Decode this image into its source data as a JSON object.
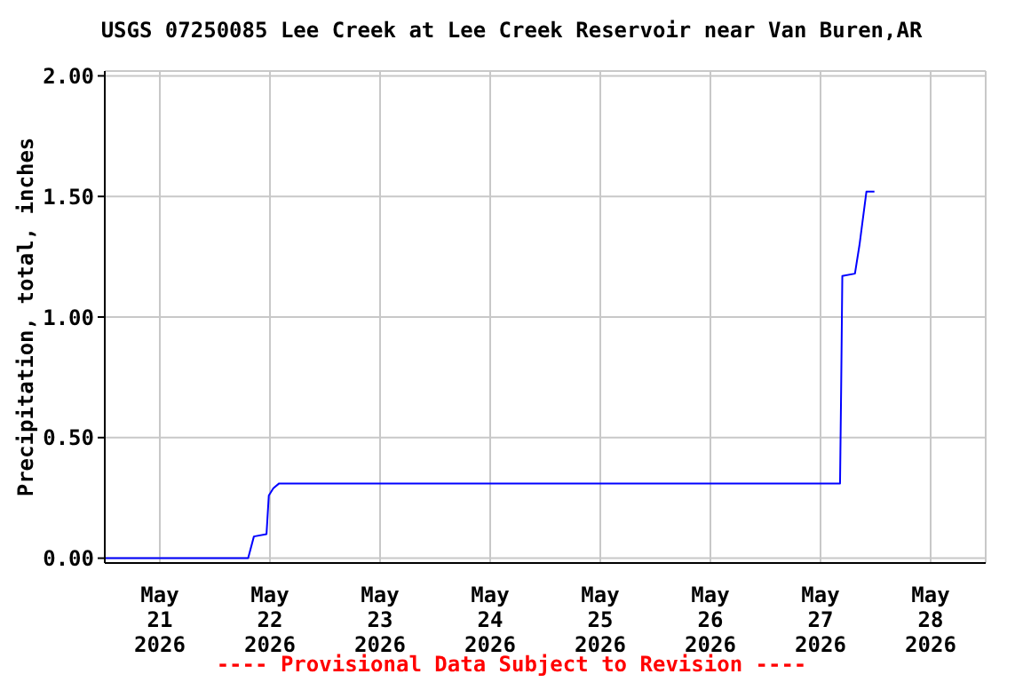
{
  "chart_data": {
    "type": "line",
    "title": "USGS 07250085 Lee Creek at Lee Creek Reservoir near Van Buren,AR",
    "ylabel": "Precipitation, total, inches",
    "annotations": [
      "---- Provisional Data Subject to Revision ----"
    ],
    "x": [
      "2026-05-20T12:00",
      "2026-05-21T19:15",
      "2026-05-21T20:30",
      "2026-05-21T23:15",
      "2026-05-21T23:45",
      "2026-05-22T00:45",
      "2026-05-22T02:00",
      "2026-05-27T04:15",
      "2026-05-27T04:30",
      "2026-05-27T04:45",
      "2026-05-27T07:30",
      "2026-05-27T08:30",
      "2026-05-27T10:00",
      "2026-05-27T11:45"
    ],
    "series": [
      {
        "color": "#0000ff",
        "values": [
          0,
          0,
          0.09,
          0.1,
          0.26,
          0.29,
          0.31,
          0.31,
          0.71,
          1.17,
          1.18,
          1.3,
          1.52,
          1.52
        ]
      }
    ],
    "xlim": [
      "2026-05-20T12:00",
      "2026-05-28T12:00"
    ],
    "xticks": [
      {
        "value": "2026-05-21",
        "label": "May\n21\n2026"
      },
      {
        "value": "2026-05-22",
        "label": "May\n22\n2026"
      },
      {
        "value": "2026-05-23",
        "label": "May\n23\n2026"
      },
      {
        "value": "2026-05-24",
        "label": "May\n24\n2026"
      },
      {
        "value": "2026-05-25",
        "label": "May\n25\n2026"
      },
      {
        "value": "2026-05-26",
        "label": "May\n26\n2026"
      },
      {
        "value": "2026-05-27",
        "label": "May\n27\n2026"
      },
      {
        "value": "2026-05-28",
        "label": "May\n28\n2026"
      }
    ],
    "ylim": [
      -0.02,
      2.02
    ],
    "yticks": [
      {
        "value": 0,
        "label": "0.00"
      },
      {
        "value": 0.5,
        "label": "0.50"
      },
      {
        "value": 1,
        "label": "1.00"
      },
      {
        "value": 1.5,
        "label": "1.50"
      },
      {
        "value": 2,
        "label": "2.00"
      }
    ],
    "grid": true,
    "marker": "none",
    "line_style": "solid"
  }
}
